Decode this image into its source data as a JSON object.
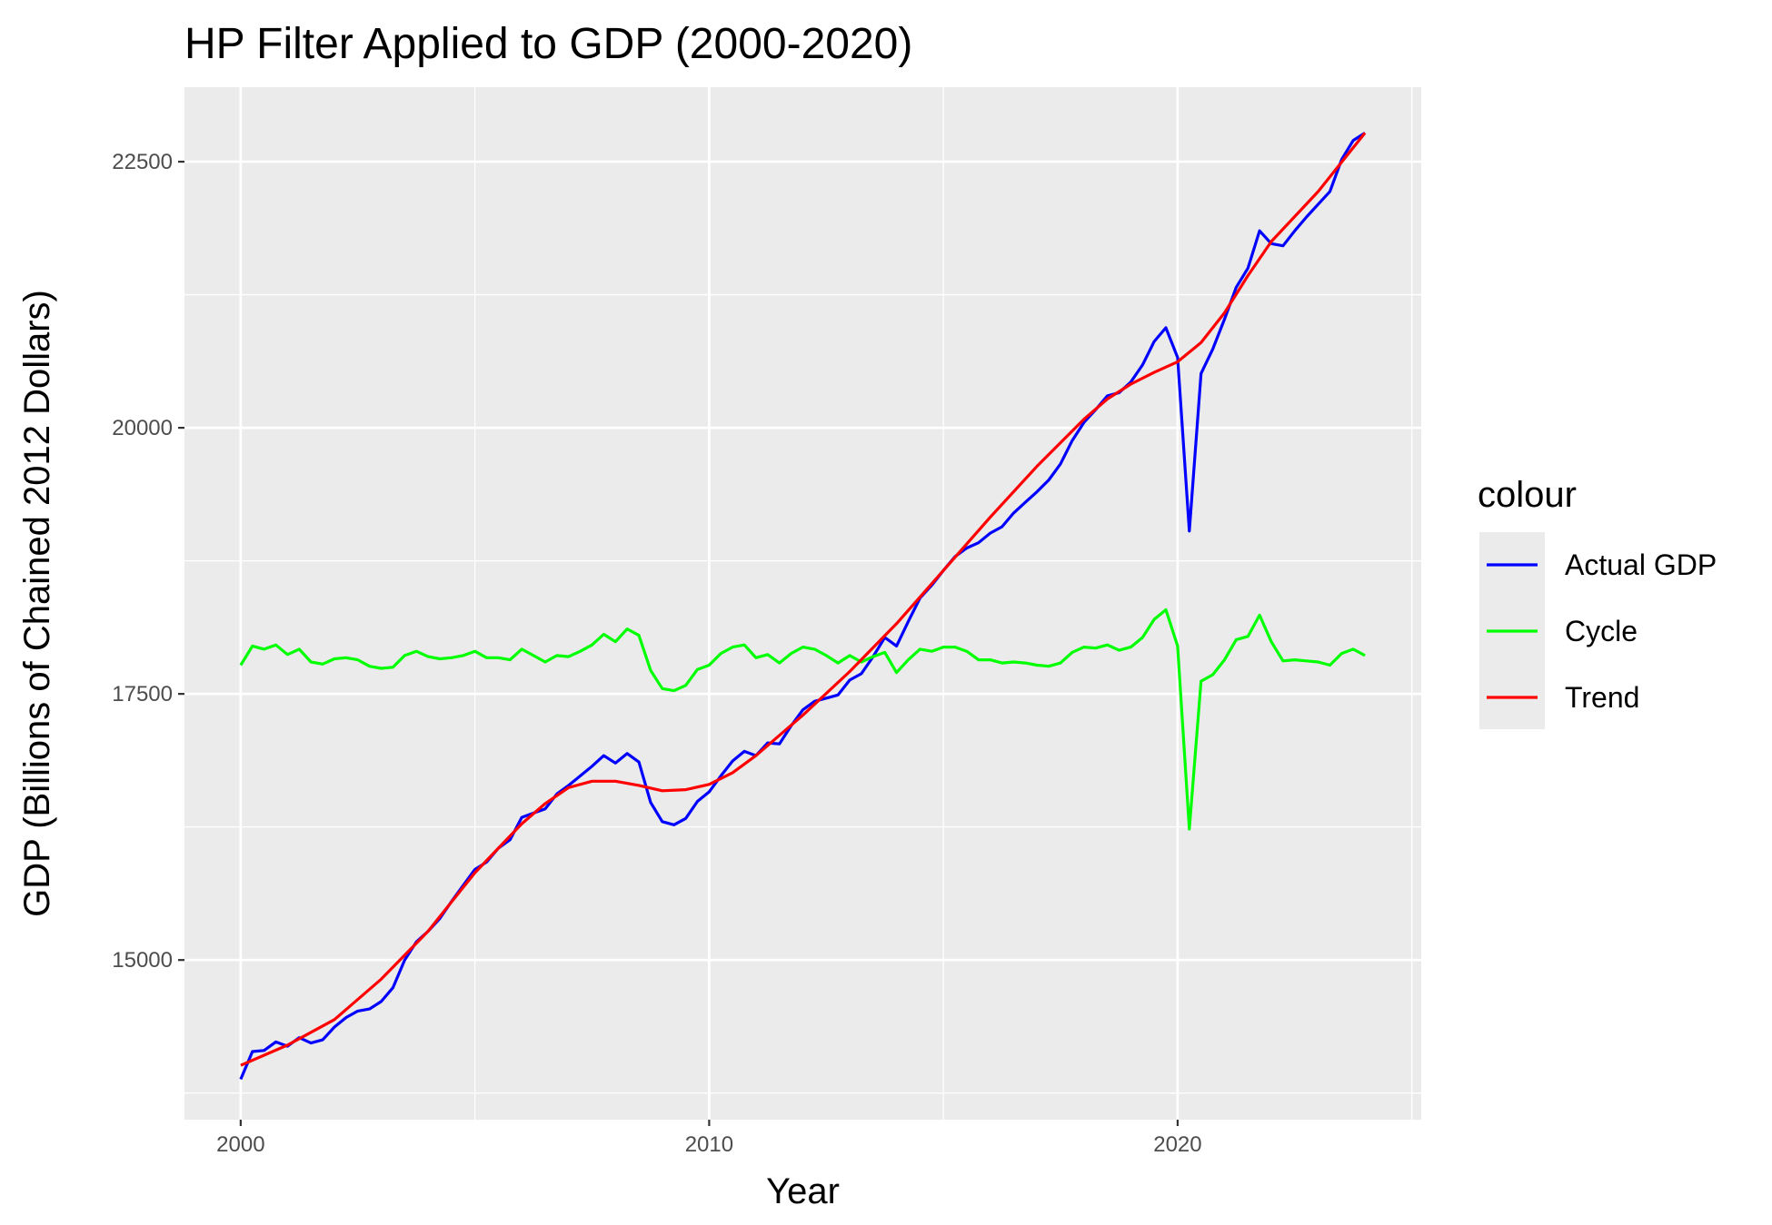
{
  "chart_data": {
    "type": "line",
    "title": "HP Filter Applied to GDP (2000-2020)",
    "xlabel": "Year",
    "ylabel": "GDP (Billions of Chained 2012 Dollars)",
    "xlim": [
      1998.8,
      2025.2
    ],
    "ylim": [
      13500,
      23200
    ],
    "xticks": [
      2000,
      2010,
      2020
    ],
    "yticks": [
      15000,
      17500,
      20000,
      22500
    ],
    "grid": true,
    "legend": {
      "title": "colour",
      "position": "right"
    },
    "series": [
      {
        "name": "Actual GDP",
        "color": "#0000ff",
        "x": [
          2000,
          2000.25,
          2000.5,
          2000.75,
          2001,
          2001.25,
          2001.5,
          2001.75,
          2002,
          2002.25,
          2002.5,
          2002.75,
          2003,
          2003.25,
          2003.5,
          2003.75,
          2004,
          2004.25,
          2004.5,
          2004.75,
          2005,
          2005.25,
          2005.5,
          2005.75,
          2006,
          2006.25,
          2006.5,
          2006.75,
          2007,
          2007.25,
          2007.5,
          2007.75,
          2008,
          2008.25,
          2008.5,
          2008.75,
          2009,
          2009.25,
          2009.5,
          2009.75,
          2010,
          2010.25,
          2010.5,
          2010.75,
          2011,
          2011.25,
          2011.5,
          2011.75,
          2012,
          2012.25,
          2012.5,
          2012.75,
          2013,
          2013.25,
          2013.5,
          2013.75,
          2014,
          2014.25,
          2014.5,
          2014.75,
          2015,
          2015.25,
          2015.5,
          2015.75,
          2016,
          2016.25,
          2016.5,
          2016.75,
          2017,
          2017.25,
          2017.5,
          2017.75,
          2018,
          2018.25,
          2018.5,
          2018.75,
          2019,
          2019.25,
          2019.5,
          2019.75,
          2020,
          2020.25,
          2020.5,
          2020.75,
          2021,
          2021.25,
          2021.5,
          2021.75,
          2022,
          2022.25,
          2022.5,
          2022.75,
          2023,
          2023.25,
          2023.5,
          2023.75,
          2024
        ],
        "values": [
          13880,
          14140,
          14150,
          14230,
          14190,
          14270,
          14220,
          14250,
          14370,
          14460,
          14520,
          14540,
          14610,
          14740,
          15000,
          15170,
          15270,
          15390,
          15550,
          15700,
          15850,
          15920,
          16050,
          16130,
          16340,
          16380,
          16420,
          16560,
          16640,
          16730,
          16820,
          16920,
          16850,
          16940,
          16860,
          16480,
          16300,
          16270,
          16330,
          16490,
          16580,
          16730,
          16870,
          16960,
          16920,
          17040,
          17030,
          17200,
          17350,
          17430,
          17460,
          17490,
          17630,
          17690,
          17850,
          18030,
          17950,
          18180,
          18400,
          18520,
          18660,
          18790,
          18870,
          18920,
          19010,
          19070,
          19200,
          19300,
          19400,
          19510,
          19660,
          19880,
          20050,
          20170,
          20300,
          20330,
          20430,
          20590,
          20810,
          20940,
          20660,
          19030,
          20510,
          20740,
          21020,
          21320,
          21500,
          21850,
          21730,
          21710,
          21850,
          21980,
          22100,
          22220,
          22520,
          22700,
          22770
        ]
      },
      {
        "name": "Trend",
        "color": "#ff0000",
        "x": [
          2000,
          2001,
          2002,
          2003,
          2004,
          2005,
          2006,
          2006.5,
          2007,
          2007.5,
          2008,
          2008.5,
          2009,
          2009.5,
          2010,
          2010.5,
          2011,
          2012,
          2013,
          2014,
          2015,
          2016,
          2017,
          2018,
          2018.5,
          2019,
          2019.5,
          2020,
          2020.5,
          2021,
          2021.5,
          2022,
          2023,
          2024
        ],
        "values": [
          14010,
          14200,
          14440,
          14820,
          15270,
          15820,
          16280,
          16470,
          16620,
          16680,
          16680,
          16640,
          16590,
          16600,
          16650,
          16760,
          16920,
          17300,
          17710,
          18160,
          18660,
          19160,
          19640,
          20080,
          20270,
          20410,
          20520,
          20620,
          20800,
          21080,
          21430,
          21750,
          22220,
          22770
        ]
      },
      {
        "name": "Cycle",
        "color": "#00ff00",
        "x": [
          2000,
          2000.25,
          2000.5,
          2000.75,
          2001,
          2001.25,
          2001.5,
          2001.75,
          2002,
          2002.25,
          2002.5,
          2002.75,
          2003,
          2003.25,
          2003.5,
          2003.75,
          2004,
          2004.25,
          2004.5,
          2004.75,
          2005,
          2005.25,
          2005.5,
          2005.75,
          2006,
          2006.25,
          2006.5,
          2006.75,
          2007,
          2007.25,
          2007.5,
          2007.75,
          2008,
          2008.25,
          2008.5,
          2008.75,
          2009,
          2009.25,
          2009.5,
          2009.75,
          2010,
          2010.25,
          2010.5,
          2010.75,
          2011,
          2011.25,
          2011.5,
          2011.75,
          2012,
          2012.25,
          2012.5,
          2012.75,
          2013,
          2013.25,
          2013.5,
          2013.75,
          2014,
          2014.25,
          2014.5,
          2014.75,
          2015,
          2015.25,
          2015.5,
          2015.75,
          2016,
          2016.25,
          2016.5,
          2016.75,
          2017,
          2017.25,
          2017.5,
          2017.75,
          2018,
          2018.25,
          2018.5,
          2018.75,
          2019,
          2019.25,
          2019.5,
          2019.75,
          2020,
          2020.25,
          2020.5,
          2020.75,
          2021,
          2021.25,
          2021.5,
          2021.75,
          2022,
          2022.25,
          2022.5,
          2022.75,
          2023,
          2023.25,
          2023.5,
          2023.75,
          2024
        ],
        "values": [
          17770,
          17950,
          17920,
          17960,
          17870,
          17920,
          17800,
          17780,
          17830,
          17840,
          17820,
          17760,
          17740,
          17750,
          17860,
          17900,
          17850,
          17830,
          17840,
          17860,
          17900,
          17840,
          17840,
          17820,
          17920,
          17860,
          17800,
          17860,
          17850,
          17900,
          17960,
          18060,
          17990,
          18110,
          18050,
          17720,
          17550,
          17530,
          17580,
          17730,
          17770,
          17880,
          17940,
          17960,
          17840,
          17870,
          17790,
          17880,
          17940,
          17920,
          17860,
          17790,
          17860,
          17800,
          17850,
          17890,
          17700,
          17820,
          17920,
          17900,
          17940,
          17940,
          17900,
          17820,
          17820,
          17790,
          17800,
          17790,
          17770,
          17760,
          17790,
          17890,
          17940,
          17930,
          17960,
          17910,
          17940,
          18030,
          18200,
          18290,
          17950,
          16230,
          17620,
          17680,
          17820,
          18010,
          18040,
          18240,
          17990,
          17810,
          17820,
          17810,
          17800,
          17770,
          17880,
          17920,
          17860
        ]
      }
    ]
  }
}
